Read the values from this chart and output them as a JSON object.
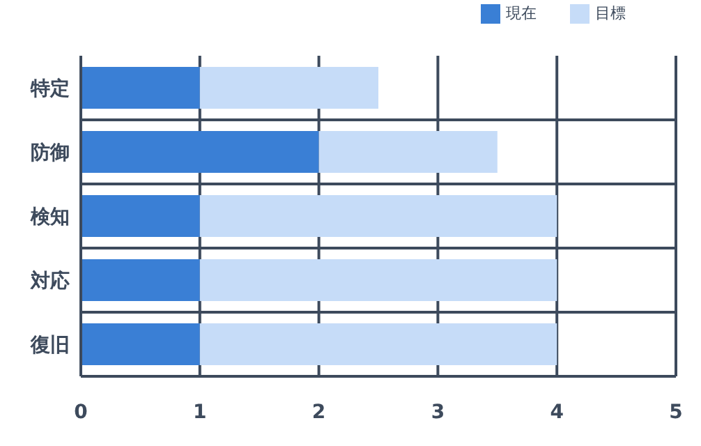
{
  "chart_data": {
    "type": "bar",
    "orientation": "horizontal",
    "stacked": true,
    "categories": [
      "特定",
      "防御",
      "検知",
      "対応",
      "復旧"
    ],
    "series": [
      {
        "name": "現在",
        "color": "#3a7fd5",
        "values": [
          1,
          2,
          1,
          1,
          1
        ]
      },
      {
        "name": "目標",
        "color": "#c6dcf8",
        "values": [
          1.5,
          1.5,
          3,
          3,
          3
        ]
      }
    ],
    "xlim": [
      0,
      5
    ],
    "xticks": [
      0,
      1,
      2,
      3,
      4,
      5
    ],
    "grid": true,
    "legend": "top right"
  }
}
